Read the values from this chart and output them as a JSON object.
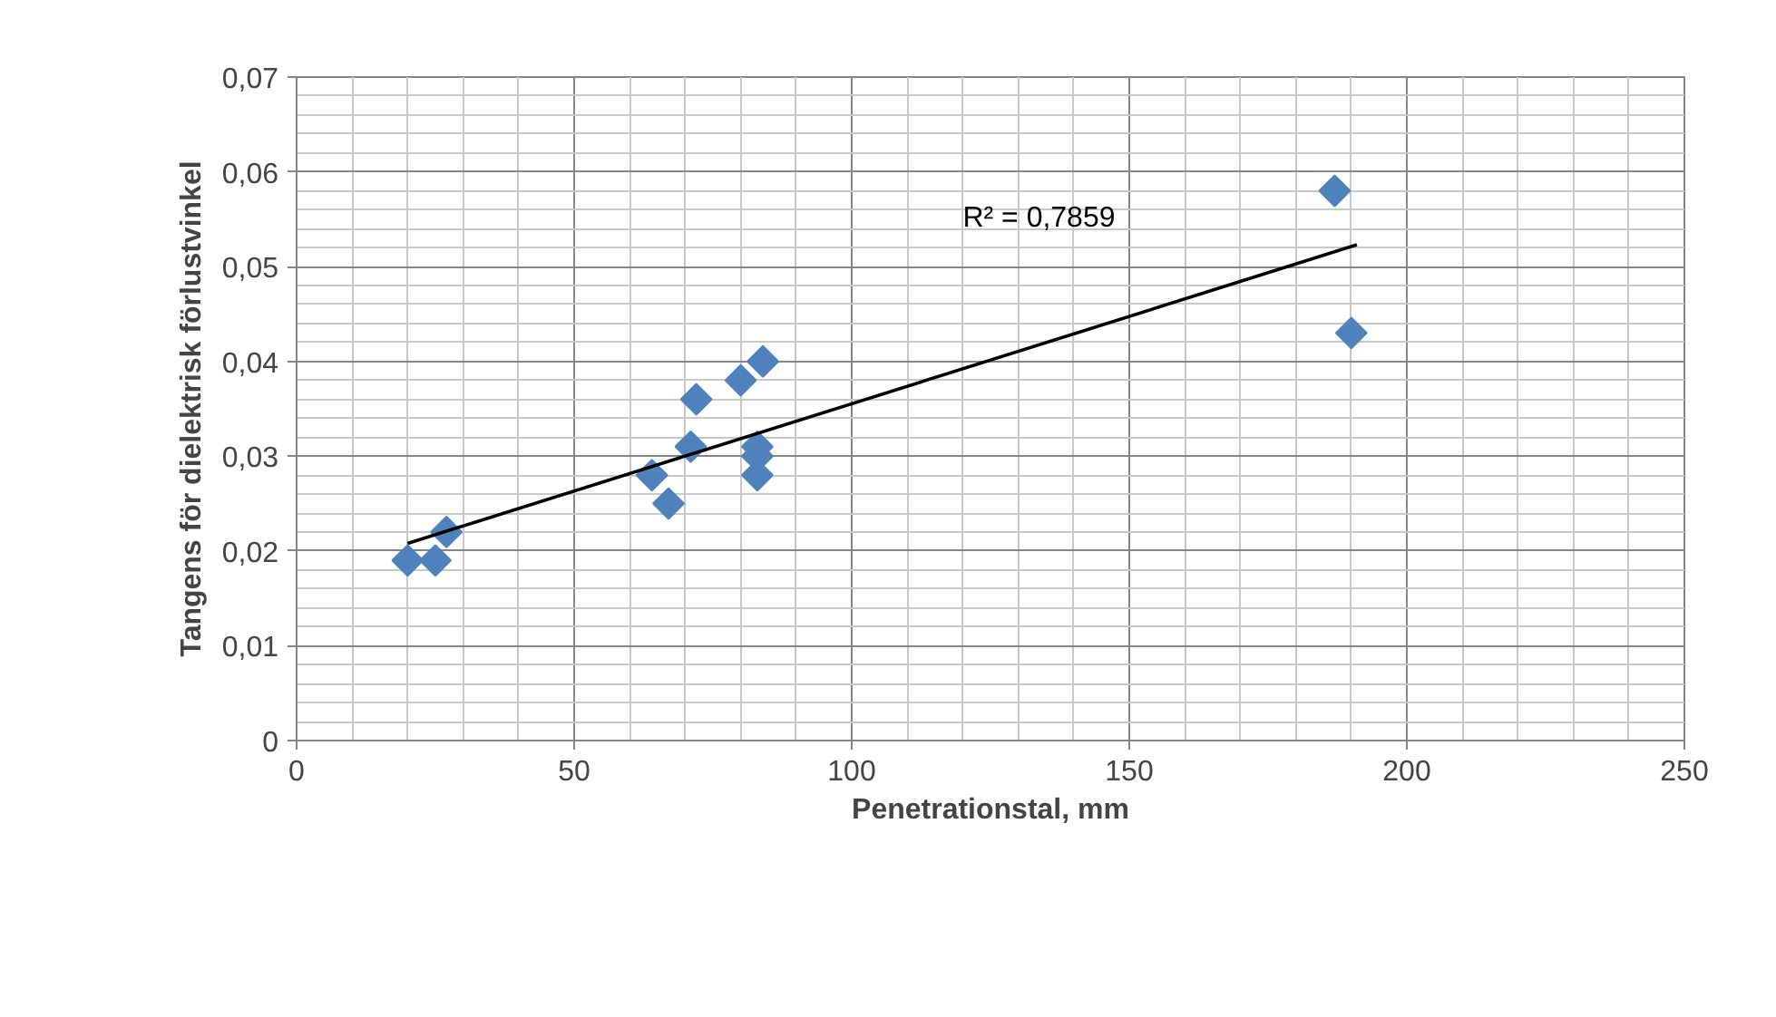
{
  "chart_data": {
    "type": "scatter",
    "xlabel": "Penetrationstal, mm",
    "ylabel": "Tangens för dielektrisk förlustvinkel",
    "xlim": [
      0,
      250
    ],
    "xticks": [
      0,
      50,
      100,
      150,
      200,
      250
    ],
    "ylim": [
      0,
      0.07
    ],
    "yticks": [
      {
        "value": 0,
        "label": "0"
      },
      {
        "value": 0.01,
        "label": "0,01"
      },
      {
        "value": 0.02,
        "label": "0,02"
      },
      {
        "value": 0.03,
        "label": "0,03"
      },
      {
        "value": 0.04,
        "label": "0,04"
      },
      {
        "value": 0.05,
        "label": "0,05"
      },
      {
        "value": 0.06,
        "label": "0,06"
      },
      {
        "value": 0.07,
        "label": "0,07"
      }
    ],
    "grid": true,
    "annotations": [
      "R² = 0,7859"
    ],
    "series": [
      {
        "marker": "diamond",
        "color": "#4f81bd",
        "x": [
          20,
          25,
          27,
          64,
          67,
          71,
          72,
          80,
          84,
          83,
          83,
          83,
          187,
          190
        ],
        "values": [
          0.019,
          0.019,
          0.022,
          0.028,
          0.025,
          0.031,
          0.036,
          0.038,
          0.04,
          0.031,
          0.03,
          0.028,
          0.058,
          0.043
        ]
      },
      {
        "type": "line",
        "marker": "none",
        "color": "#000000",
        "x": [
          20,
          191
        ],
        "values": [
          0.0208,
          0.0523
        ]
      }
    ]
  }
}
